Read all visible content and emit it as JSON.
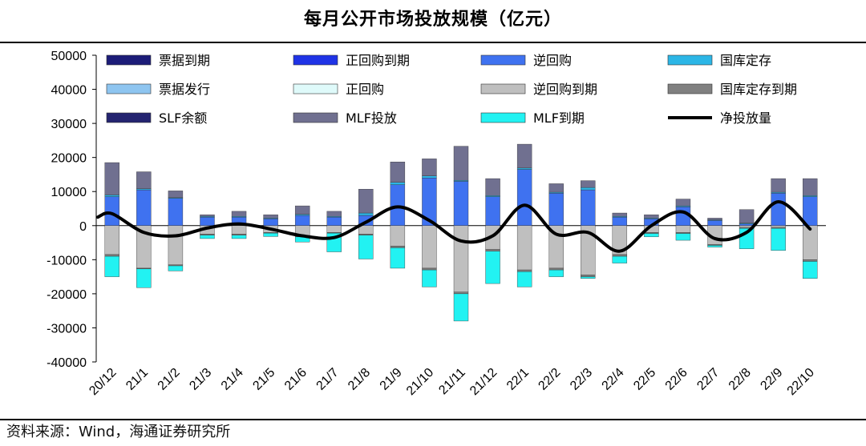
{
  "title": "每月公开市场投放规模（亿元）",
  "source": "资料来源：Wind，海通证券研究所",
  "chart_data": {
    "type": "bar",
    "stacked": true,
    "title": "每月公开市场投放规模（亿元）",
    "xlabel": "",
    "ylabel": "",
    "ylim": [
      -40000,
      50000
    ],
    "yticks": [
      50000,
      40000,
      30000,
      20000,
      10000,
      0,
      -10000,
      -20000,
      -30000,
      -40000
    ],
    "categories": [
      "20/12",
      "21/1",
      "21/2",
      "21/3",
      "21/4",
      "21/5",
      "21/6",
      "21/7",
      "21/8",
      "21/9",
      "21/10",
      "21/11",
      "21/12",
      "22/1",
      "22/2",
      "22/3",
      "22/4",
      "22/5",
      "22/6",
      "22/7",
      "22/8",
      "22/9",
      "22/10"
    ],
    "legend_placement": "top",
    "series": [
      {
        "name": "票据到期",
        "color": "#1c1c78",
        "values": [
          0,
          0,
          0,
          0,
          0,
          0,
          0,
          0,
          0,
          0,
          0,
          0,
          0,
          0,
          0,
          0,
          0,
          0,
          0,
          0,
          0,
          0,
          0
        ]
      },
      {
        "name": "正回购到期",
        "color": "#1f33e6",
        "values": [
          0,
          0,
          0,
          0,
          0,
          0,
          0,
          0,
          0,
          0,
          0,
          0,
          0,
          0,
          0,
          0,
          0,
          0,
          0,
          0,
          0,
          0,
          0
        ]
      },
      {
        "name": "逆回购",
        "color": "#3f72f0",
        "values": [
          8500,
          10500,
          8000,
          2500,
          2500,
          2000,
          3000,
          2500,
          3000,
          12000,
          14000,
          13000,
          8500,
          16500,
          9500,
          10500,
          2500,
          2000,
          5500,
          1500,
          500,
          9500,
          8500
        ]
      },
      {
        "name": "国库定存",
        "color": "#2cb6e6",
        "values": [
          500,
          300,
          200,
          200,
          200,
          200,
          300,
          200,
          700,
          700,
          600,
          300,
          300,
          400,
          300,
          700,
          200,
          200,
          300,
          200,
          200,
          300,
          300
        ]
      },
      {
        "name": "票据发行",
        "color": "#8ec5f0",
        "values": [
          0,
          0,
          0,
          0,
          0,
          0,
          0,
          0,
          0,
          0,
          0,
          0,
          0,
          0,
          0,
          0,
          0,
          0,
          0,
          0,
          0,
          0,
          0
        ]
      },
      {
        "name": "正回购",
        "color": "#dffafa",
        "values": [
          0,
          0,
          0,
          0,
          0,
          0,
          0,
          0,
          0,
          0,
          0,
          0,
          0,
          0,
          0,
          0,
          0,
          0,
          0,
          0,
          0,
          0,
          0
        ]
      },
      {
        "name": "逆回购到期",
        "color": "#bfbfbf",
        "values": [
          -8500,
          -12500,
          -11500,
          -2500,
          -2500,
          -2000,
          -3000,
          -2000,
          -2500,
          -6000,
          -12500,
          -19500,
          -7000,
          -13000,
          -12500,
          -14500,
          -8500,
          -2000,
          -2000,
          -5500,
          -500,
          -500,
          -10000
        ]
      },
      {
        "name": "国库定存到期",
        "color": "#808080",
        "values": [
          -500,
          -200,
          -300,
          -300,
          -300,
          -200,
          -300,
          -200,
          -300,
          -500,
          -500,
          -500,
          -500,
          -500,
          -500,
          -500,
          -500,
          -300,
          -300,
          -300,
          -300,
          -300,
          -500
        ]
      },
      {
        "name": "SLF余额",
        "color": "#242470",
        "values": [
          0,
          0,
          0,
          0,
          0,
          0,
          0,
          0,
          0,
          0,
          0,
          0,
          0,
          0,
          0,
          0,
          0,
          0,
          0,
          0,
          0,
          0,
          0
        ]
      },
      {
        "name": "MLF投放",
        "color": "#707090",
        "values": [
          9500,
          5000,
          2000,
          500,
          1500,
          1000,
          2500,
          1500,
          7000,
          6000,
          5000,
          10000,
          5000,
          7000,
          2500,
          2000,
          1000,
          1000,
          2000,
          500,
          4000,
          4000,
          5000
        ]
      },
      {
        "name": "MLF到期",
        "color": "#22f2f2",
        "values": [
          -6000,
          -5500,
          -1500,
          -1000,
          -1000,
          -1000,
          -1500,
          -5500,
          -7000,
          -6000,
          -5000,
          -8000,
          -9500,
          -4500,
          -2000,
          -500,
          -2000,
          -1000,
          -2000,
          -500,
          -6000,
          -6500,
          -5000
        ]
      }
    ],
    "line": {
      "name": "净投放量",
      "color": "#000000",
      "values": [
        3500,
        -2000,
        -3000,
        -700,
        500,
        -1000,
        -3000,
        -3500,
        1000,
        5500,
        1500,
        -4500,
        -3000,
        6000,
        -2500,
        -2000,
        -7500,
        0,
        4000,
        -3800,
        -2000,
        7000,
        -1000
      ]
    }
  }
}
